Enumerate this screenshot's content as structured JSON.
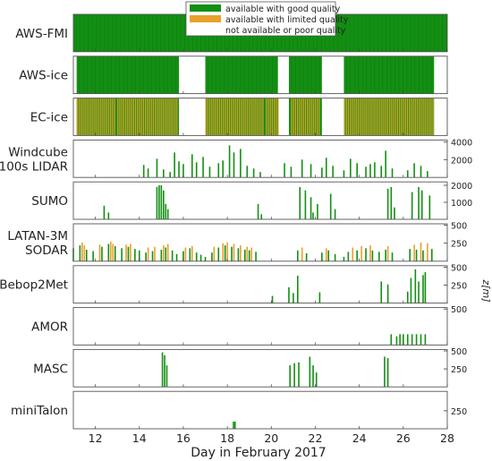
{
  "chart_data": {
    "type": "data-availability-timeline",
    "xlabel": "Day in February 2017",
    "xlim": [
      11,
      28
    ],
    "xticks": [
      12,
      14,
      16,
      18,
      20,
      22,
      24,
      26,
      28
    ],
    "ylabel": "z[m]",
    "colors": {
      "good": "#138f13",
      "limited": "#e8a12a",
      "none": "#ffffff"
    },
    "legend": {
      "position": "top-center",
      "entries": [
        {
          "key": "good",
          "label": "available with good quality"
        },
        {
          "key": "limited",
          "label": "available with limited quality"
        },
        {
          "key": "none",
          "label": "not available or poor quality"
        }
      ]
    },
    "panels": [
      {
        "name": "AWS-FMI",
        "kind": "band",
        "good": [
          [
            11,
            28
          ]
        ]
      },
      {
        "name": "AWS-ice",
        "kind": "band",
        "good": [
          [
            11.15,
            15.8
          ],
          [
            17.0,
            20.3
          ],
          [
            20.8,
            22.3
          ],
          [
            23.3,
            27.4
          ]
        ]
      },
      {
        "name": "EC-ice",
        "kind": "band",
        "good": [
          [
            11.15,
            15.8
          ],
          [
            17.0,
            20.3
          ],
          [
            20.8,
            22.3
          ],
          [
            23.3,
            27.4
          ]
        ],
        "limited": [
          [
            11.15,
            12.9
          ],
          [
            13.0,
            15.7
          ],
          [
            17.0,
            19.6
          ],
          [
            19.75,
            20.3
          ],
          [
            20.9,
            22.2
          ],
          [
            23.3,
            27.4
          ]
        ]
      },
      {
        "name": "Windcube 100s LIDAR",
        "kind": "profile",
        "yticks": [
          2000,
          4000
        ],
        "ylim": [
          0,
          4200
        ],
        "good": [
          [
            14.2,
            1400
          ],
          [
            14.4,
            1000
          ],
          [
            14.8,
            2100
          ],
          [
            15.1,
            900
          ],
          [
            15.4,
            600
          ],
          [
            15.6,
            2800
          ],
          [
            15.8,
            1800
          ],
          [
            16.0,
            1500
          ],
          [
            16.4,
            2600
          ],
          [
            16.6,
            1700
          ],
          [
            16.9,
            2300
          ],
          [
            17.2,
            1200
          ],
          [
            17.6,
            1600
          ],
          [
            17.8,
            1900
          ],
          [
            18.1,
            3600
          ],
          [
            18.3,
            2800
          ],
          [
            18.6,
            3200
          ],
          [
            18.9,
            1300
          ],
          [
            19.2,
            1000
          ],
          [
            19.5,
            600
          ],
          [
            20.6,
            1600
          ],
          [
            20.9,
            1200
          ],
          [
            21.4,
            2000
          ],
          [
            21.8,
            1500
          ],
          [
            22.3,
            1100
          ],
          [
            22.5,
            2200
          ],
          [
            22.8,
            1300
          ],
          [
            23.3,
            800
          ],
          [
            23.6,
            2100
          ],
          [
            23.9,
            1600
          ],
          [
            24.3,
            1200
          ],
          [
            24.5,
            1500
          ],
          [
            24.7,
            1700
          ],
          [
            25.0,
            1300
          ],
          [
            25.2,
            3000
          ],
          [
            25.5,
            1000
          ],
          [
            26.2,
            800
          ],
          [
            26.5,
            1600
          ],
          [
            26.8,
            1300
          ],
          [
            27.1,
            700
          ]
        ]
      },
      {
        "name": "SUMO",
        "kind": "profile",
        "yticks": [
          1000,
          2000
        ],
        "ylim": [
          0,
          2200
        ],
        "good": [
          [
            12.4,
            800
          ],
          [
            12.6,
            400
          ],
          [
            14.8,
            1900
          ],
          [
            14.9,
            2000
          ],
          [
            15.0,
            2000
          ],
          [
            15.1,
            1700
          ],
          [
            15.2,
            900
          ],
          [
            15.3,
            600
          ],
          [
            19.4,
            900
          ],
          [
            19.55,
            300
          ],
          [
            21.3,
            1900
          ],
          [
            21.55,
            1700
          ],
          [
            21.8,
            1300
          ],
          [
            21.9,
            400
          ],
          [
            22.1,
            900
          ],
          [
            22.7,
            1500
          ],
          [
            22.9,
            600
          ],
          [
            25.3,
            1800
          ],
          [
            25.45,
            1900
          ],
          [
            25.6,
            700
          ],
          [
            26.4,
            1600
          ],
          [
            26.7,
            1900
          ],
          [
            26.85,
            1700
          ],
          [
            27.2,
            1400
          ]
        ]
      },
      {
        "name": "LATAN-3M SODAR",
        "kind": "profile",
        "yticks": [
          250,
          500
        ],
        "ylim": [
          0,
          520
        ],
        "good": [
          [
            11.0,
            180
          ],
          [
            11.3,
            220
          ],
          [
            11.6,
            160
          ],
          [
            11.9,
            140
          ],
          [
            12.3,
            200
          ],
          [
            12.6,
            240
          ],
          [
            12.9,
            210
          ],
          [
            13.2,
            180
          ],
          [
            13.5,
            200
          ],
          [
            13.8,
            170
          ],
          [
            14.0,
            150
          ],
          [
            14.3,
            120
          ],
          [
            14.6,
            140
          ],
          [
            15.0,
            160
          ],
          [
            15.2,
            190
          ],
          [
            15.5,
            150
          ],
          [
            15.7,
            100
          ],
          [
            16.0,
            140
          ],
          [
            16.3,
            180
          ],
          [
            16.6,
            120
          ],
          [
            16.8,
            90
          ],
          [
            17.0,
            60
          ],
          [
            17.3,
            120
          ],
          [
            17.6,
            190
          ],
          [
            17.9,
            220
          ],
          [
            18.2,
            200
          ],
          [
            18.5,
            180
          ],
          [
            18.8,
            160
          ],
          [
            19.0,
            150
          ],
          [
            19.3,
            130
          ],
          [
            21.2,
            150
          ],
          [
            21.6,
            110
          ],
          [
            22.3,
            120
          ],
          [
            22.6,
            150
          ],
          [
            22.9,
            100
          ],
          [
            23.3,
            60
          ],
          [
            23.5,
            130
          ],
          [
            23.9,
            150
          ],
          [
            24.3,
            180
          ],
          [
            24.6,
            150
          ],
          [
            24.9,
            130
          ],
          [
            25.2,
            160
          ],
          [
            25.5,
            120
          ],
          [
            26.3,
            170
          ],
          [
            26.6,
            160
          ],
          [
            26.9,
            150
          ],
          [
            27.3,
            170
          ]
        ],
        "limited": [
          [
            11.4,
            260
          ],
          [
            11.5,
            220
          ],
          [
            12.2,
            230
          ],
          [
            12.7,
            270
          ],
          [
            12.8,
            240
          ],
          [
            13.4,
            230
          ],
          [
            13.6,
            240
          ],
          [
            14.4,
            190
          ],
          [
            14.7,
            200
          ],
          [
            15.1,
            220
          ],
          [
            15.3,
            240
          ],
          [
            16.1,
            190
          ],
          [
            16.4,
            210
          ],
          [
            17.4,
            200
          ],
          [
            17.8,
            250
          ],
          [
            18.0,
            260
          ],
          [
            18.3,
            240
          ],
          [
            18.6,
            220
          ],
          [
            18.9,
            200
          ],
          [
            19.1,
            190
          ],
          [
            21.4,
            190
          ],
          [
            22.5,
            180
          ],
          [
            23.7,
            190
          ],
          [
            24.1,
            210
          ],
          [
            24.5,
            220
          ],
          [
            25.3,
            210
          ],
          [
            26.5,
            230
          ],
          [
            26.8,
            260
          ],
          [
            27.1,
            250
          ]
        ]
      },
      {
        "name": "Bebop2Met",
        "kind": "profile",
        "yticks": [
          250,
          500
        ],
        "ylim": [
          0,
          520
        ],
        "good": [
          [
            20.05,
            100
          ],
          [
            20.8,
            220
          ],
          [
            21.0,
            140
          ],
          [
            21.2,
            380
          ],
          [
            22.2,
            150
          ],
          [
            25.0,
            300
          ],
          [
            25.3,
            260
          ],
          [
            26.2,
            160
          ],
          [
            26.35,
            350
          ],
          [
            26.55,
            470
          ],
          [
            26.7,
            300
          ],
          [
            26.9,
            390
          ],
          [
            27.0,
            430
          ]
        ]
      },
      {
        "name": "AMOR",
        "kind": "profile",
        "yticks": [
          500
        ],
        "ylim": [
          0,
          520
        ],
        "good": [
          [
            25.45,
            150
          ],
          [
            25.7,
            120
          ],
          [
            25.85,
            150
          ],
          [
            26.0,
            150
          ],
          [
            26.2,
            150
          ],
          [
            26.4,
            150
          ],
          [
            26.6,
            150
          ],
          [
            26.8,
            150
          ],
          [
            27.0,
            150
          ]
        ]
      },
      {
        "name": "MASC",
        "kind": "profile",
        "yticks": [
          250,
          500
        ],
        "ylim": [
          0,
          520
        ],
        "good": [
          [
            15.05,
            480
          ],
          [
            15.15,
            440
          ],
          [
            15.25,
            300
          ],
          [
            20.85,
            300
          ],
          [
            21.05,
            330
          ],
          [
            21.25,
            340
          ],
          [
            21.75,
            420
          ],
          [
            21.9,
            300
          ],
          [
            22.05,
            200
          ],
          [
            25.15,
            420
          ],
          [
            25.3,
            400
          ]
        ]
      },
      {
        "name": "miniTalon",
        "kind": "profile",
        "yticks": [
          250
        ],
        "ylim": [
          0,
          520
        ],
        "good": [
          [
            18.28,
            100
          ],
          [
            18.35,
            100
          ]
        ]
      }
    ]
  }
}
